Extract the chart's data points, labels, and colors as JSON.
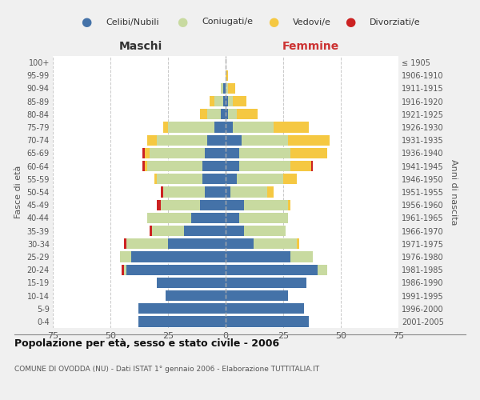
{
  "age_groups": [
    "0-4",
    "5-9",
    "10-14",
    "15-19",
    "20-24",
    "25-29",
    "30-34",
    "35-39",
    "40-44",
    "45-49",
    "50-54",
    "55-59",
    "60-64",
    "65-69",
    "70-74",
    "75-79",
    "80-84",
    "85-89",
    "90-94",
    "95-99",
    "100+"
  ],
  "birth_years": [
    "2001-2005",
    "1996-2000",
    "1991-1995",
    "1986-1990",
    "1981-1985",
    "1976-1980",
    "1971-1975",
    "1966-1970",
    "1961-1965",
    "1956-1960",
    "1951-1955",
    "1946-1950",
    "1941-1945",
    "1936-1940",
    "1931-1935",
    "1926-1930",
    "1921-1925",
    "1916-1920",
    "1911-1915",
    "1906-1910",
    "≤ 1905"
  ],
  "males": {
    "celibi": [
      38,
      38,
      26,
      30,
      43,
      41,
      25,
      18,
      15,
      11,
      9,
      10,
      10,
      9,
      8,
      5,
      2,
      1,
      1,
      0,
      0
    ],
    "coniugati": [
      0,
      0,
      0,
      0,
      1,
      5,
      18,
      14,
      19,
      17,
      18,
      20,
      24,
      24,
      22,
      20,
      6,
      4,
      1,
      0,
      0
    ],
    "vedovi": [
      0,
      0,
      0,
      0,
      0,
      0,
      0,
      0,
      0,
      0,
      0,
      1,
      1,
      2,
      4,
      2,
      3,
      2,
      0,
      0,
      0
    ],
    "divorziati": [
      0,
      0,
      0,
      0,
      1,
      0,
      1,
      1,
      0,
      2,
      1,
      0,
      1,
      1,
      0,
      0,
      0,
      0,
      0,
      0,
      0
    ]
  },
  "females": {
    "nubili": [
      36,
      34,
      27,
      35,
      40,
      28,
      12,
      8,
      6,
      8,
      2,
      5,
      6,
      6,
      7,
      3,
      1,
      1,
      0,
      0,
      0
    ],
    "coniugate": [
      0,
      0,
      0,
      0,
      4,
      10,
      19,
      18,
      21,
      19,
      16,
      20,
      22,
      22,
      20,
      18,
      4,
      2,
      1,
      0,
      0
    ],
    "vedove": [
      0,
      0,
      0,
      0,
      0,
      0,
      1,
      0,
      0,
      1,
      3,
      6,
      9,
      16,
      18,
      15,
      9,
      6,
      3,
      1,
      0
    ],
    "divorziate": [
      0,
      0,
      0,
      0,
      0,
      0,
      0,
      0,
      0,
      0,
      0,
      0,
      1,
      0,
      0,
      0,
      0,
      0,
      0,
      0,
      0
    ]
  },
  "colors": {
    "celibi": "#4472a8",
    "coniugati": "#c8daa0",
    "vedovi": "#f5c842",
    "divorziati": "#cc2222"
  },
  "legend_labels": [
    "Celibi/Nubili",
    "Coniugati/e",
    "Vedovi/e",
    "Divorziati/e"
  ],
  "title": "Popolazione per età, sesso e stato civile - 2006",
  "subtitle": "COMUNE DI OVODDA (NU) - Dati ISTAT 1° gennaio 2006 - Elaborazione TUTTITALIA.IT",
  "xlabel_left": "Maschi",
  "xlabel_right": "Femmine",
  "ylabel_left": "Fasce di età",
  "ylabel_right": "Anni di nascita",
  "xlim": 75,
  "bg_color": "#f0f0f0",
  "plot_bg_color": "#ffffff"
}
